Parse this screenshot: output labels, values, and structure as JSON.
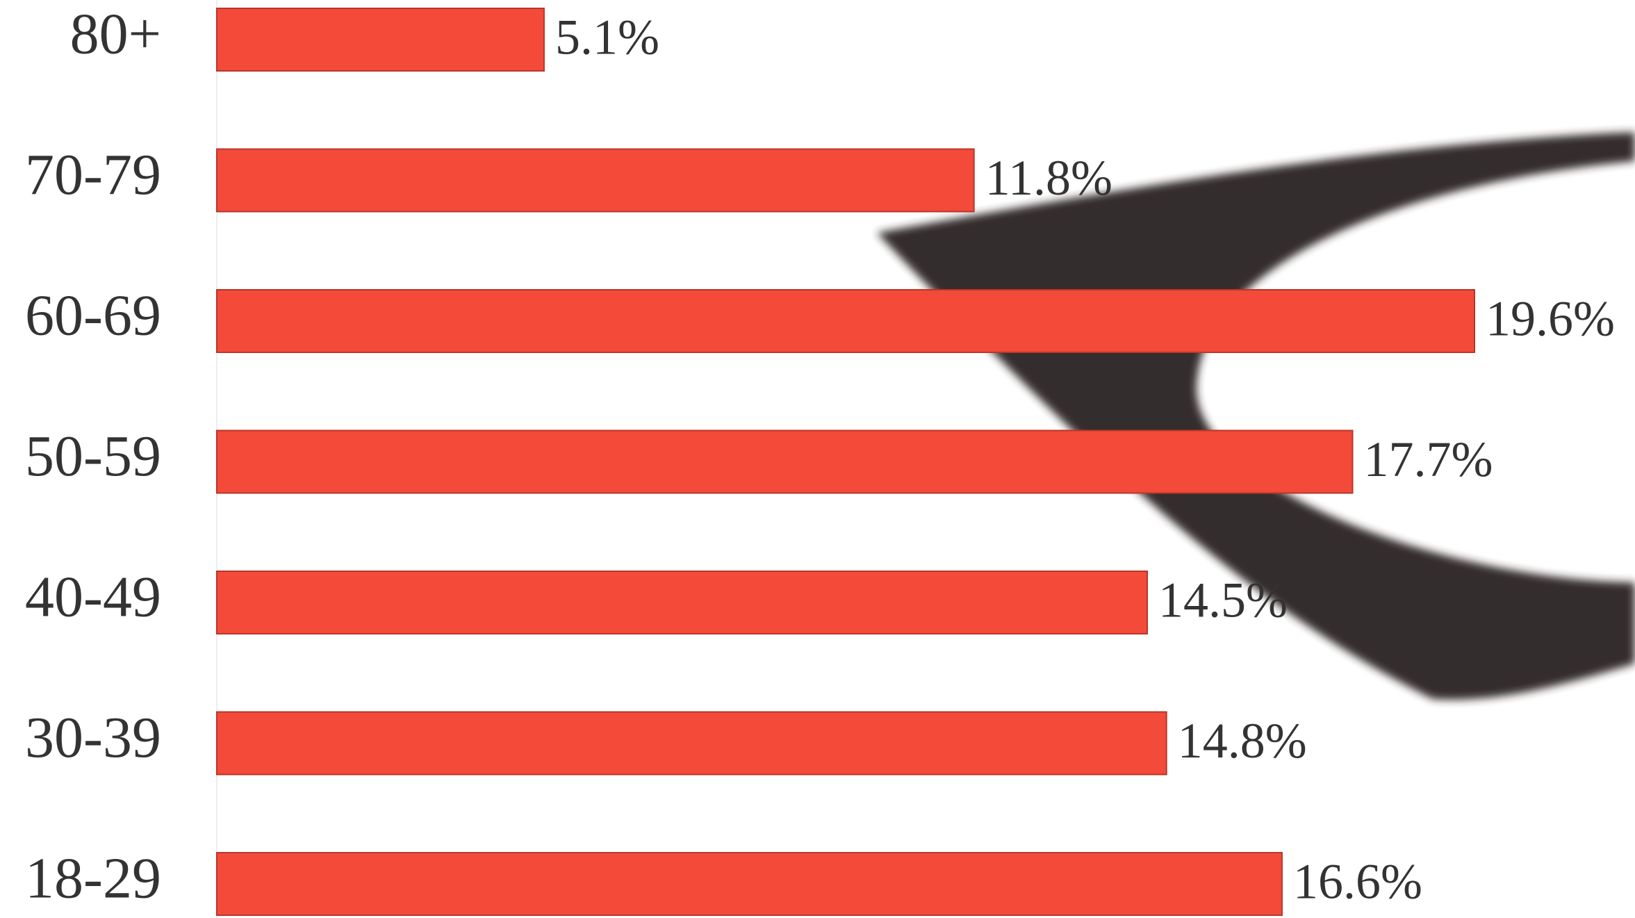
{
  "chart_data": {
    "type": "bar",
    "orientation": "horizontal",
    "categories": [
      "80+",
      "70-79",
      "60-69",
      "50-59",
      "40-49",
      "30-39",
      "18-29"
    ],
    "values": [
      5.1,
      11.8,
      19.6,
      17.7,
      14.5,
      14.8,
      16.6
    ],
    "value_labels": [
      "5.1%",
      "11.8%",
      "19.6%",
      "17.7%",
      "14.5%",
      "14.8%",
      "16.6%"
    ],
    "color": "#f44a3a"
  }
}
